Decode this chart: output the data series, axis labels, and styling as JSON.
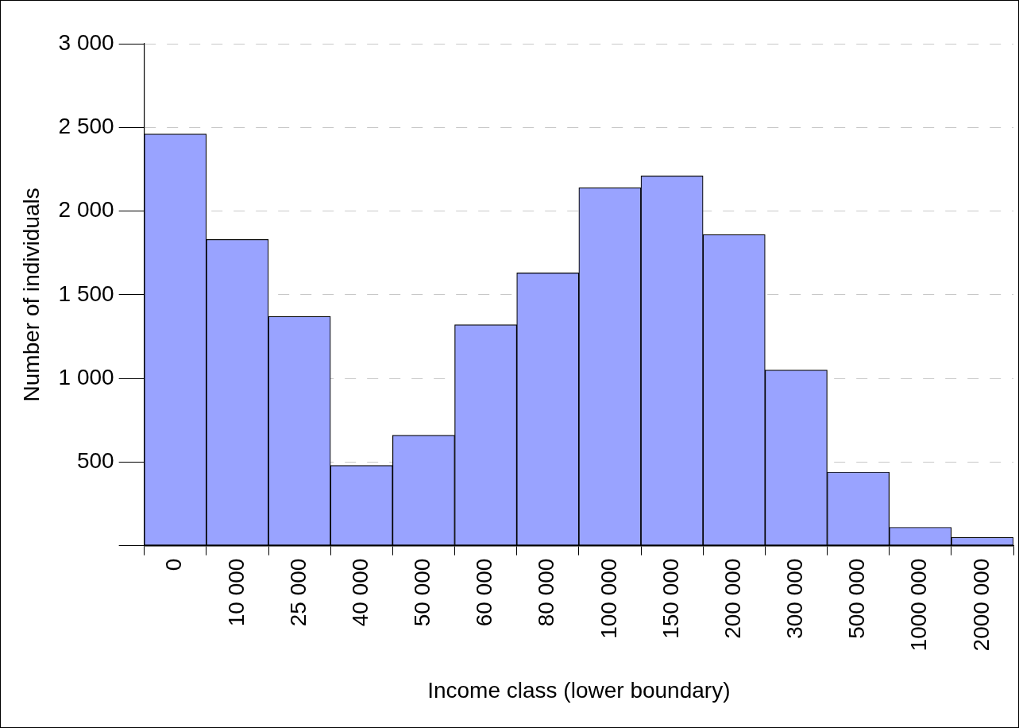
{
  "chart_data": {
    "type": "bar",
    "xlabel": "Income class (lower boundary)",
    "ylabel": "Number of individuals",
    "categories": [
      "0",
      "10 000",
      "25 000",
      "40 000",
      "50 000",
      "60 000",
      "80 000",
      "100 000",
      "150 000",
      "200 000",
      "300 000",
      "500 000",
      "1000 000",
      "2000 000"
    ],
    "values": [
      2460,
      1830,
      1370,
      480,
      660,
      1320,
      1630,
      2140,
      2210,
      1860,
      1050,
      440,
      110,
      50
    ],
    "color": "#99a3ff",
    "ylim": [
      0,
      3000
    ],
    "yticks": [
      {
        "value": 0,
        "label": null
      },
      500,
      {
        "value": 1000,
        "label": "1 000"
      },
      {
        "value": 1500,
        "label": "1 500"
      },
      {
        "value": 2000,
        "label": "2 000"
      },
      {
        "value": 2500,
        "label": "2 500"
      },
      {
        "value": 3000,
        "label": "3 000"
      }
    ],
    "grid": "y"
  }
}
